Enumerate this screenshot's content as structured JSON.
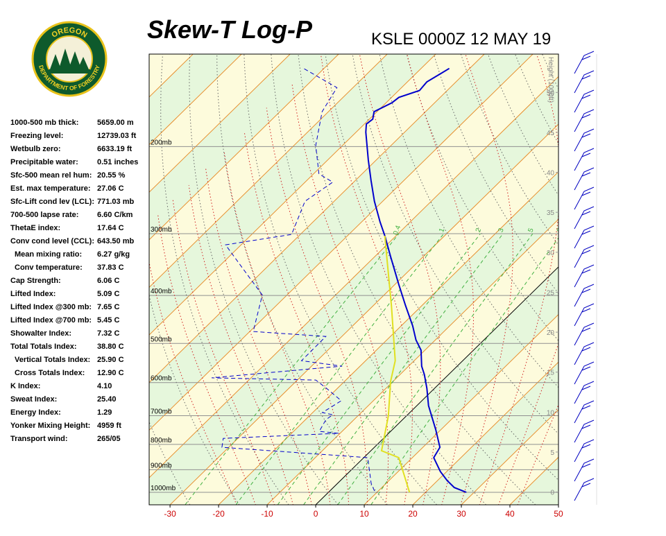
{
  "logo": {
    "top": "OREGON",
    "bottom": "DEPARTMENT OF FORESTRY"
  },
  "stats": [
    {
      "label": "1000-500 mb thick:",
      "value": "5659.00 m"
    },
    {
      "label": "Freezing level:",
      "value": "12739.03 ft"
    },
    {
      "label": "Wetbulb zero:",
      "value": "6633.19 ft"
    },
    {
      "label": "Precipitable water:",
      "value": "0.51 inches"
    },
    {
      "label": "Sfc-500 mean rel hum:",
      "value": "20.55 %"
    },
    {
      "label": "Est. max temperature:",
      "value": "27.06 C"
    },
    {
      "label": "Sfc-Lift cond lev (LCL):",
      "value": "771.03 mb"
    },
    {
      "label": "700-500 lapse rate:",
      "value": "6.60 C/km"
    },
    {
      "label": "ThetaE index:",
      "value": "17.64 C"
    },
    {
      "label": "Conv cond level (CCL):",
      "value": "643.50 mb"
    },
    {
      "label": "Mean mixing ratio:",
      "value": "6.27 g/kg"
    },
    {
      "label": "Conv temperature:",
      "value": "37.83 C"
    },
    {
      "label": "Cap Strength:",
      "value": "6.06 C"
    },
    {
      "label": "Lifted Index:",
      "value": "5.09 C"
    },
    {
      "label": "Lifted Index @300 mb:",
      "value": "7.65 C"
    },
    {
      "label": "Lifted Index @700 mb:",
      "value": "5.45 C"
    },
    {
      "label": "Showalter Index:",
      "value": "7.32 C"
    },
    {
      "label": "Total Totals Index:",
      "value": "38.80 C"
    },
    {
      "label": "Vertical Totals Index:",
      "value": "25.90 C"
    },
    {
      "label": "Cross Totals Index:",
      "value": "12.90 C"
    },
    {
      "label": "K Index:",
      "value": "4.10"
    },
    {
      "label": "Sweat Index:",
      "value": "25.40"
    },
    {
      "label": "Energy Index:",
      "value": "1.29"
    },
    {
      "label": "Yonker Mixing Height:",
      "value": "4959 ft"
    },
    {
      "label": "Transport wind:",
      "value": "265/05"
    }
  ],
  "chart_data": {
    "type": "skew-t",
    "title": "Skew-T Log-P",
    "subtitle": "KSLE 0000Z 12 MAY 19",
    "y2label": "Height (1000ft)",
    "xlim": [
      -34.3,
      50
    ],
    "xticks": [
      -30,
      -20,
      -10,
      0,
      10,
      20,
      30,
      40,
      50
    ],
    "ylim": [
      1060,
      130
    ],
    "log_y": true,
    "yticks": [
      {
        "value": 1000,
        "label": "1000mb"
      },
      {
        "value": 900,
        "label": "900mb"
      },
      {
        "value": 800,
        "label": "800mb"
      },
      {
        "value": 700,
        "label": "700mb"
      },
      {
        "value": 600,
        "label": "600mb"
      },
      {
        "value": 500,
        "label": "500mb"
      },
      {
        "value": 400,
        "label": "400mb"
      },
      {
        "value": 300,
        "label": "300mb"
      },
      {
        "value": 200,
        "label": "200mb"
      }
    ],
    "y2lim": [
      -1.6,
      54.8
    ],
    "y2ticks": [
      0,
      5,
      10,
      15,
      20,
      25,
      30,
      35,
      40,
      45,
      50
    ],
    "mixing_ratio_lines": [
      0.4,
      1,
      2,
      3,
      5,
      8
    ],
    "series": [
      {
        "color": "#0000cc",
        "style": "solid",
        "pressure": [
          1000,
          978,
          947,
          908,
          851,
          811,
          748,
          668,
          616,
          578,
          556,
          516,
          492,
          461,
          419,
          380,
          334,
          303,
          284,
          258,
          234,
          213,
          187,
          180,
          176,
          170,
          163,
          159,
          154,
          148,
          139
        ],
        "values": [
          28.4,
          24.9,
          22.0,
          18.7,
          14.4,
          13.5,
          9.0,
          2.4,
          -1.6,
          -5.0,
          -7.3,
          -10.8,
          -14.0,
          -17.6,
          -23.4,
          -29.2,
          -36.7,
          -42.3,
          -46.2,
          -51.7,
          -56.8,
          -61.6,
          -68.0,
          -69.6,
          -69.3,
          -70.6,
          -68.8,
          -68.5,
          -65.7,
          -66.0,
          -64.2
        ]
      },
      {
        "color": "#0000cc",
        "style": "dashed",
        "pressure": [
          994,
          959,
          851,
          843,
          811,
          778,
          760,
          753,
          713,
          697,
          690,
          653,
          616,
          593,
          587,
          563,
          556,
          542,
          484,
          473,
          399,
          368,
          316,
          301,
          258,
          236,
          227,
          199,
          170,
          152,
          139
        ],
        "values": [
          9.2,
          6.9,
          0.8,
          -5.3,
          -31.4,
          -33.0,
          -10.3,
          -14.7,
          -15.8,
          -15.4,
          -18.0,
          -16.6,
          -22.3,
          -26.2,
          -48.1,
          -29.6,
          -23.7,
          -33.2,
          -33.3,
          -49.3,
          -55.1,
          -61.4,
          -73.2,
          -61.8,
          -66.0,
          -64.3,
          -68.9,
          -75.5,
          -81.3,
          -83.3,
          -94.2
        ]
      },
      {
        "color": "#e0e020",
        "style": "solid",
        "pressure": [
          1000,
          851,
          824,
          701,
          597,
          542,
          419,
          334,
          303
        ],
        "values": [
          16.7,
          7.2,
          2.2,
          -3.7,
          -10.5,
          -13.9,
          -26.3,
          -37.5,
          -42.3
        ]
      }
    ]
  }
}
